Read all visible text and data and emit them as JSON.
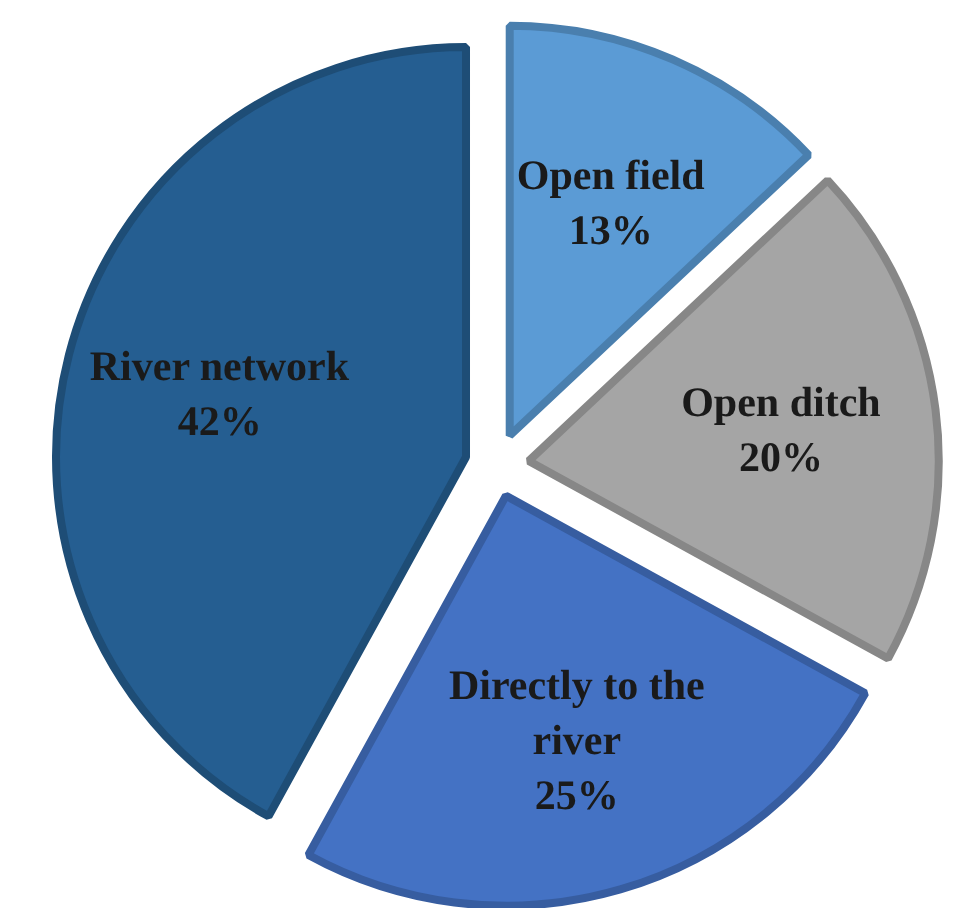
{
  "chart_data": {
    "type": "pie",
    "categories": [
      "Open field",
      "Open ditch",
      "Directly to the river",
      "River network"
    ],
    "values": [
      13,
      20,
      25,
      42
    ],
    "value_labels": [
      "13%",
      "20%",
      "25%",
      "42%"
    ],
    "colors": [
      "#5b9bd5",
      "#a5a5a5",
      "#4472c4",
      "#255e91"
    ],
    "legend": false
  }
}
